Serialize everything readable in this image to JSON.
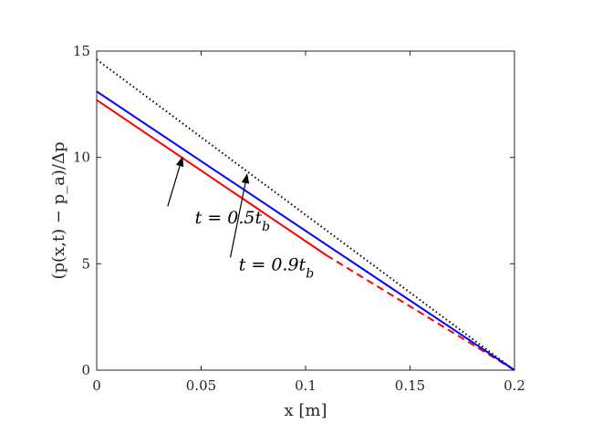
{
  "chart_data": {
    "type": "line",
    "title": "",
    "xlabel": "x [m]",
    "ylabel": "(p(x,t) − p_a)/Δp",
    "xlim": [
      0,
      0.2
    ],
    "ylim": [
      0,
      15
    ],
    "xticks": [
      0,
      0.05,
      0.1,
      0.15,
      0.2
    ],
    "xtick_labels": [
      "0",
      "0.05",
      "0.1",
      "0.15",
      "0.2"
    ],
    "yticks": [
      0,
      5,
      10,
      15
    ],
    "ytick_labels": [
      "0",
      "5",
      "10",
      "15"
    ],
    "grid": false,
    "series": [
      {
        "color": "#000000",
        "style": "dotted",
        "points": [
          [
            0,
            14.6
          ],
          [
            0.2,
            0
          ]
        ]
      },
      {
        "color": "#ff0000",
        "style": "solid",
        "points": [
          [
            0,
            12.7
          ],
          [
            0.11,
            5.4
          ]
        ]
      },
      {
        "color": "#ff0000",
        "style": "dashed",
        "points": [
          [
            0.11,
            5.4
          ],
          [
            0.2,
            0
          ]
        ]
      },
      {
        "color": "#0000ff",
        "style": "solid",
        "points": [
          [
            0,
            13.1
          ],
          [
            0.2,
            0
          ]
        ]
      }
    ],
    "annotations": [
      {
        "label": "t = 0.5t_b",
        "label_main": "t = 0.5t",
        "label_sub": "b",
        "text_anchor": [
          0.065,
          6.9
        ],
        "arrow_from": [
          0.034,
          7.7
        ],
        "arrow_to": [
          0.041,
          10.0
        ]
      },
      {
        "label": "t = 0.9t_b",
        "label_main": "t = 0.9t",
        "label_sub": "b",
        "text_anchor": [
          0.086,
          4.7
        ],
        "arrow_from": [
          0.064,
          5.3
        ],
        "arrow_to": [
          0.072,
          9.2
        ]
      }
    ]
  }
}
